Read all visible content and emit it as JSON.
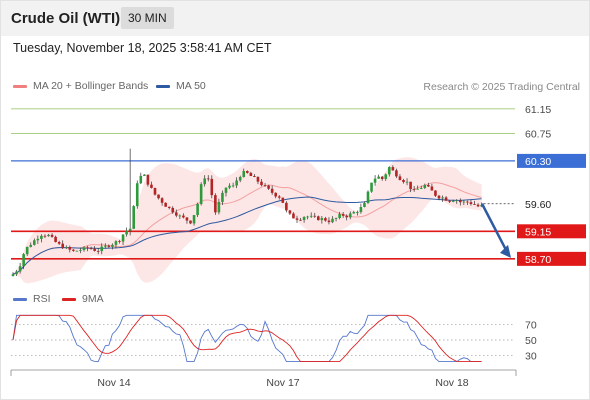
{
  "header": {
    "title": "Crude Oil (WTI)",
    "timeframe": "30 MIN"
  },
  "timestamp": "Tuesday, November 18, 2025 3:58:41 AM CET",
  "legend": {
    "bollinger": {
      "label": "MA 20 + Bollinger Bands",
      "color": "#f08080"
    },
    "ma50": {
      "label": "MA 50",
      "color": "#2d5aa0"
    }
  },
  "credit": "Research © 2025 Trading Central",
  "rsi_legend": {
    "rsi": {
      "label": "RSI",
      "color": "#5577cc"
    },
    "ma9": {
      "label": "9MA",
      "color": "#dd2222"
    }
  },
  "chart_data": {
    "type": "candlestick",
    "x_tick_labels": [
      "Nov 14",
      "Nov 17",
      "Nov 18"
    ],
    "y_range": [
      58.42,
      61.36
    ],
    "current_price": {
      "value": 59.6,
      "label": "59.60"
    },
    "levels": [
      {
        "value": 61.15,
        "label": "61.15",
        "color": "#8fbf5a",
        "style": "line"
      },
      {
        "value": 60.75,
        "label": "60.75",
        "color": "#8fbf5a",
        "style": "line"
      },
      {
        "value": 60.3,
        "label": "60.30",
        "color": "#3b6fd6",
        "style": "box"
      },
      {
        "value": 59.15,
        "label": "59.15",
        "color": "#e01818",
        "style": "box"
      },
      {
        "value": 58.7,
        "label": "58.70",
        "color": "#e01818",
        "style": "box"
      }
    ],
    "forecast_arrow": {
      "from": 59.6,
      "to": 58.7,
      "color": "#2d5aa0"
    },
    "rsi": {
      "y_range": [
        15,
        85
      ],
      "ticks": [
        70,
        50,
        30
      ]
    }
  }
}
